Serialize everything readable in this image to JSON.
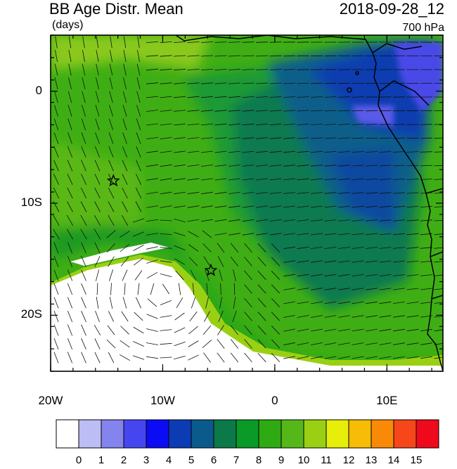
{
  "header": {
    "title": "BB Age Distr. Mean",
    "units": "(days)",
    "datetime": "2018-09-28_12",
    "level": "700 hPa"
  },
  "map": {
    "lon_range": [
      -20,
      15
    ],
    "lat_range": [
      -25,
      5
    ],
    "y_ticks": [
      {
        "lat": 0,
        "label": "0"
      },
      {
        "lat": -10,
        "label": "10S"
      },
      {
        "lat": -20,
        "label": "20S"
      }
    ],
    "x_ticks": [
      {
        "lon": -20,
        "label": "20W"
      },
      {
        "lon": -10,
        "label": "10W"
      },
      {
        "lon": 0,
        "label": "0"
      },
      {
        "lon": 10,
        "label": "10E"
      }
    ],
    "markers": [
      {
        "name": "star-marker",
        "lon": -14.4,
        "lat": -8.0
      },
      {
        "name": "star-marker",
        "lon": -5.7,
        "lat": -16.0
      }
    ]
  },
  "colorbar": {
    "labels": [
      "0",
      "1",
      "2",
      "3",
      "4",
      "5",
      "6",
      "7",
      "8",
      "9",
      "10",
      "11",
      "12",
      "13",
      "14",
      "15"
    ],
    "colors": [
      "#ffffff",
      "#bdbdf5",
      "#8484ee",
      "#4646f0",
      "#0c0cf4",
      "#0c3cb4",
      "#0b5a8c",
      "#0b7a48",
      "#0a9a28",
      "#2eaa12",
      "#55b818",
      "#9ad013",
      "#e6ee0a",
      "#f6bc06",
      "#f88a08",
      "#f6461a",
      "#ee0a1c"
    ]
  }
}
